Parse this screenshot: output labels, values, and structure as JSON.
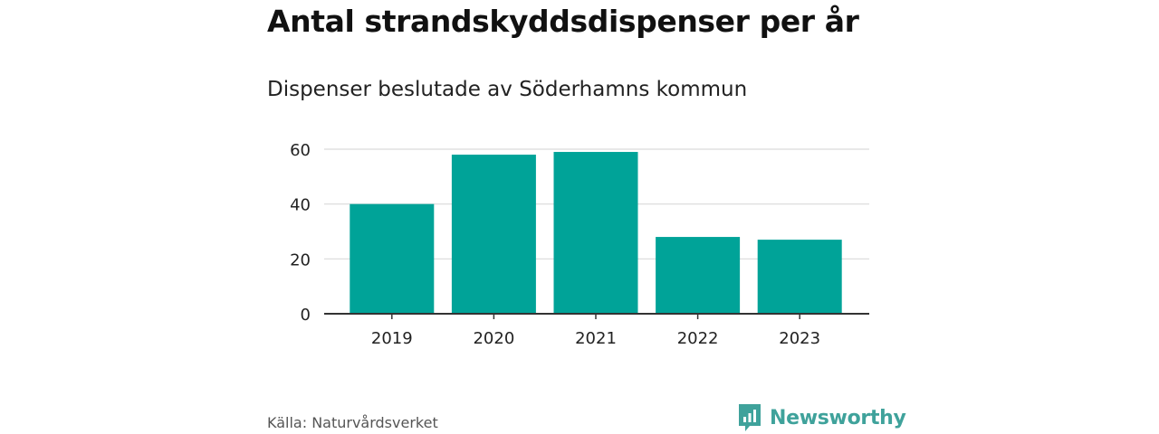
{
  "title": "Antal strandskyddsdispenser per år",
  "subtitle": "Dispenser beslutade av Söderhamns kommun",
  "source": "Källa: Naturvårdsverket",
  "brand": {
    "name": "Newsworthy",
    "logo_icon": "bar-chart-speech-bubble-icon"
  },
  "colors": {
    "bar": "#00a398",
    "grid": "#d9d9d9",
    "axis": "#333333",
    "brand": "#3fa29b"
  },
  "chart_data": {
    "type": "bar",
    "title": "Antal strandskyddsdispenser per år",
    "subtitle": "Dispenser beslutade av Söderhamns kommun",
    "categories": [
      "2019",
      "2020",
      "2021",
      "2022",
      "2023"
    ],
    "values": [
      40,
      58,
      59,
      28,
      27
    ],
    "xlabel": "",
    "ylabel": "",
    "ylim": [
      0,
      60
    ],
    "yticks": [
      0,
      20,
      40,
      60
    ],
    "grid": true,
    "legend": "none"
  }
}
